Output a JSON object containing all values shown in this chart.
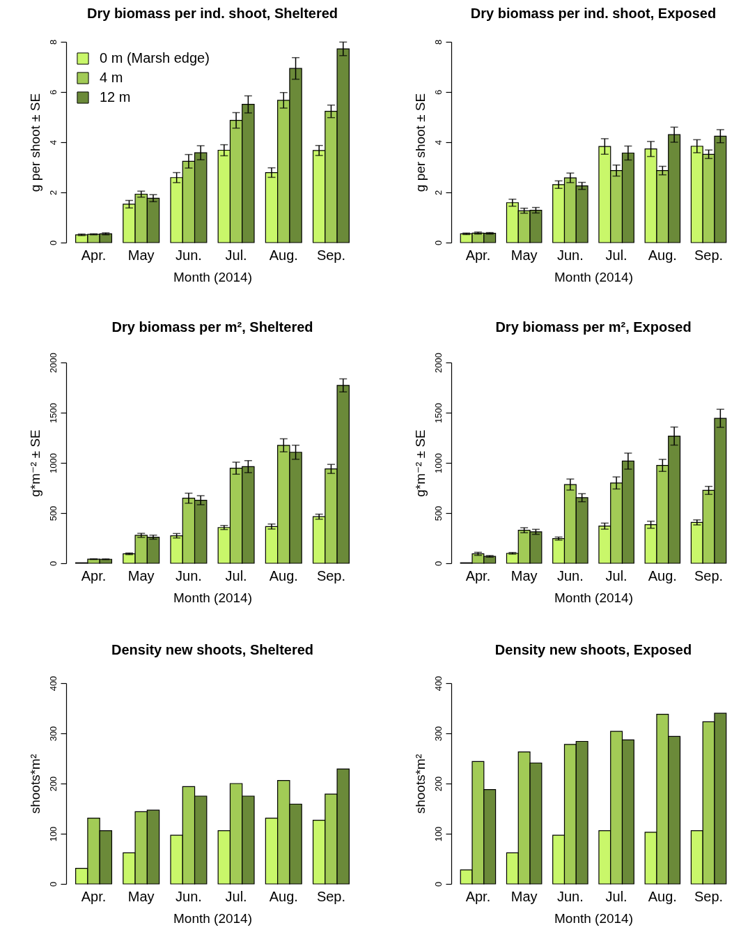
{
  "chart_data": [
    {
      "type": "bar",
      "title": "Dry biomass per ind. shoot, Sheltered",
      "xlabel": "Month (2014)",
      "ylabel": "g per shoot ± SE",
      "categories": [
        "Apr.",
        "May",
        "Jun.",
        "Jul.",
        "Aug.",
        "Sep."
      ],
      "ylim": [
        0,
        8
      ],
      "yticks": [
        0,
        2,
        4,
        6,
        8
      ],
      "legend": "top left",
      "series": [
        {
          "name": "0 m (Marsh edge)",
          "color": "#c9f76a",
          "values": [
            0.31,
            1.53,
            2.59,
            3.68,
            2.79,
            3.67
          ],
          "errors": [
            0.03,
            0.15,
            0.2,
            0.22,
            0.19,
            0.2
          ]
        },
        {
          "name": "4 m",
          "color": "#a2cb56",
          "values": [
            0.33,
            1.93,
            3.24,
            4.87,
            5.67,
            5.23
          ],
          "errors": [
            0.02,
            0.12,
            0.27,
            0.31,
            0.31,
            0.25
          ]
        },
        {
          "name": "12 m",
          "color": "#6b8a39",
          "values": [
            0.35,
            1.77,
            3.58,
            5.51,
            6.94,
            7.72
          ],
          "errors": [
            0.04,
            0.14,
            0.28,
            0.34,
            0.43,
            0.27
          ]
        }
      ]
    },
    {
      "type": "bar",
      "title": "Dry biomass per ind. shoot, Exposed",
      "xlabel": "Month (2014)",
      "ylabel": "g per shoot ± SE",
      "categories": [
        "Apr.",
        "May",
        "Jun.",
        "Jul.",
        "Aug.",
        "Sep."
      ],
      "ylim": [
        0,
        8
      ],
      "yticks": [
        0,
        2,
        4,
        6,
        8
      ],
      "series": [
        {
          "color": "#c9f76a",
          "values": [
            0.35,
            1.59,
            2.31,
            3.83,
            3.73,
            3.84
          ],
          "errors": [
            0.03,
            0.14,
            0.15,
            0.31,
            0.3,
            0.26
          ]
        },
        {
          "color": "#a2cb56",
          "values": [
            0.38,
            1.27,
            2.58,
            2.87,
            2.87,
            3.52
          ],
          "errors": [
            0.04,
            0.1,
            0.19,
            0.22,
            0.17,
            0.17
          ]
        },
        {
          "color": "#6b8a39",
          "values": [
            0.37,
            1.29,
            2.26,
            3.57,
            4.3,
            4.24
          ],
          "errors": [
            0.03,
            0.11,
            0.14,
            0.28,
            0.3,
            0.26
          ]
        }
      ]
    },
    {
      "type": "bar",
      "title": "Dry biomass per m², Sheltered",
      "xlabel": "Month (2014)",
      "ylabel": "g*m⁻² ± SE",
      "categories": [
        "Apr.",
        "May",
        "Jun.",
        "Jul.",
        "Aug.",
        "Sep."
      ],
      "ylim": [
        0,
        2000
      ],
      "yticks": [
        0,
        500,
        1000,
        1500,
        2000
      ],
      "series": [
        {
          "color": "#c9f76a",
          "values": [
            5,
            94,
            274,
            356,
            366,
            464
          ],
          "errors": [
            null,
            8,
            22,
            20,
            25,
            25
          ]
        },
        {
          "color": "#a2cb56",
          "values": [
            41,
            278,
            648,
            947,
            1175,
            940
          ],
          "errors": [
            3,
            20,
            50,
            60,
            65,
            45
          ]
        },
        {
          "color": "#6b8a39",
          "values": [
            40,
            260,
            628,
            963,
            1106,
            1772
          ],
          "errors": [
            3,
            20,
            45,
            60,
            70,
            65
          ]
        }
      ]
    },
    {
      "type": "bar",
      "title": "Dry biomass per m², Exposed",
      "xlabel": "Month (2014)",
      "ylabel": "g*m⁻² ± SE",
      "categories": [
        "Apr.",
        "May",
        "Jun.",
        "Jul.",
        "Aug.",
        "Sep."
      ],
      "ylim": [
        0,
        2000
      ],
      "yticks": [
        0,
        500,
        1000,
        1500,
        2000
      ],
      "series": [
        {
          "color": "#c9f76a",
          "values": [
            5,
            99,
            246,
            370,
            384,
            407
          ],
          "errors": [
            null,
            8,
            15,
            30,
            35,
            25
          ]
        },
        {
          "color": "#a2cb56",
          "values": [
            94,
            329,
            784,
            800,
            975,
            726
          ],
          "errors": [
            15,
            25,
            55,
            60,
            60,
            40
          ]
        },
        {
          "color": "#6b8a39",
          "values": [
            69,
            313,
            653,
            1018,
            1267,
            1444
          ],
          "errors": [
            8,
            25,
            40,
            80,
            90,
            90
          ]
        }
      ]
    },
    {
      "type": "bar",
      "title": "Density new shoots, Sheltered",
      "xlabel": "Month (2014)",
      "ylabel": "shoots*m²",
      "categories": [
        "Apr.",
        "May",
        "Jun.",
        "Jul.",
        "Aug.",
        "Sep."
      ],
      "ylim": [
        0,
        400
      ],
      "yticks": [
        0,
        100,
        200,
        300,
        400
      ],
      "series": [
        {
          "color": "#c9f76a",
          "values": [
            31,
            62,
            97,
            106,
            131,
            127
          ]
        },
        {
          "color": "#a2cb56",
          "values": [
            131,
            144,
            194,
            200,
            206,
            179
          ]
        },
        {
          "color": "#6b8a39",
          "values": [
            106,
            147,
            175,
            175,
            159,
            229
          ]
        }
      ]
    },
    {
      "type": "bar",
      "title": "Density new shoots, Exposed",
      "xlabel": "Month (2014)",
      "ylabel": "shoots*m²",
      "categories": [
        "Apr.",
        "May",
        "Jun.",
        "Jul.",
        "Aug.",
        "Sep."
      ],
      "ylim": [
        0,
        400
      ],
      "yticks": [
        0,
        100,
        200,
        300,
        400
      ],
      "series": [
        {
          "color": "#c9f76a",
          "values": [
            28,
            62,
            97,
            106,
            103,
            106
          ]
        },
        {
          "color": "#a2cb56",
          "values": [
            244,
            263,
            278,
            304,
            338,
            323
          ]
        },
        {
          "color": "#6b8a39",
          "values": [
            188,
            241,
            284,
            287,
            294,
            340
          ]
        }
      ]
    }
  ]
}
